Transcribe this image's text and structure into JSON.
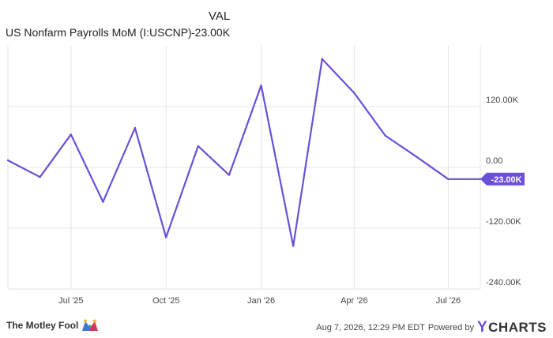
{
  "legend": {
    "column_header": "VAL",
    "series_name": "US Nonfarm Payrolls MoM (I:USCNP)",
    "series_value": "-23.00K"
  },
  "chart_data": {
    "type": "line",
    "series": [
      {
        "name": "US Nonfarm Payrolls MoM (I:USCNP)",
        "color": "#6b4fd8",
        "x": [
          "2025-05-01",
          "2025-06-01",
          "2025-07-01",
          "2025-08-01",
          "2025-09-01",
          "2025-10-01",
          "2025-11-01",
          "2025-12-01",
          "2026-01-01",
          "2026-02-01",
          "2026-03-01",
          "2026-04-01",
          "2026-05-01",
          "2026-06-01",
          "2026-07-01",
          "2026-08-01"
        ],
        "y": [
          14,
          -19,
          65,
          -68,
          78,
          -138,
          42,
          -15,
          162,
          -155,
          214,
          147,
          63,
          20,
          -23,
          -23
        ]
      }
    ],
    "x_ticks": [
      {
        "date": "2025-07-01",
        "label": "Jul '25"
      },
      {
        "date": "2025-10-01",
        "label": "Oct '25"
      },
      {
        "date": "2026-01-01",
        "label": "Jan '26"
      },
      {
        "date": "2026-04-01",
        "label": "Apr '26"
      },
      {
        "date": "2026-07-01",
        "label": "Jul '26"
      }
    ],
    "y_ticks": [
      {
        "value": 120,
        "label": "120.00K"
      },
      {
        "value": 0,
        "label": "0.00"
      },
      {
        "value": -120,
        "label": "-120.00K"
      },
      {
        "value": -240,
        "label": "-240.00K"
      }
    ],
    "ylim": [
      -240,
      240
    ],
    "xlim": [
      "2025-05-01",
      "2026-08-01"
    ],
    "grid": true,
    "last_value_label": "-23.00K",
    "accent_color": "#6b4fd8"
  },
  "footer": {
    "brand": "The Motley Fool",
    "timestamp": "Aug 7, 2026, 12:29 PM EDT",
    "powered_by": "Powered by",
    "ycharts_y": "Y",
    "ycharts_rest": "CHARTS"
  }
}
